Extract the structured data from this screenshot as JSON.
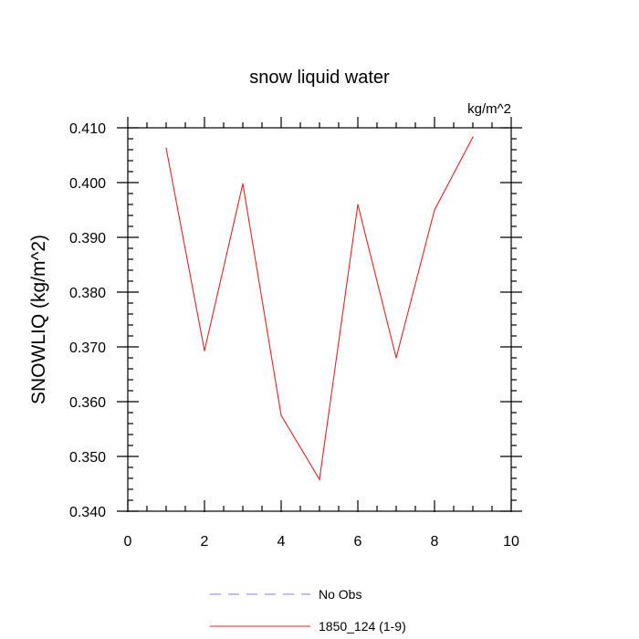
{
  "chart_data": {
    "type": "line",
    "title": "snow liquid water",
    "units": "kg/m^2",
    "xlabel": "",
    "ylabel": "SNOWLIQ  (kg/m^2)",
    "xlim": [
      0,
      10
    ],
    "ylim": [
      0.34,
      0.41
    ],
    "x_ticks": [
      0,
      2,
      4,
      6,
      8,
      10
    ],
    "x_tick_labels": [
      "0",
      "2",
      "4",
      "6",
      "8",
      "10"
    ],
    "y_ticks": [
      0.34,
      0.35,
      0.36,
      0.37,
      0.38,
      0.39,
      0.4,
      0.41
    ],
    "y_tick_labels": [
      "0.340",
      "0.350",
      "0.360",
      "0.370",
      "0.380",
      "0.390",
      "0.400",
      "0.410"
    ],
    "grid": false,
    "legend_position": "bottom-center",
    "series": [
      {
        "name": "No Obs",
        "color": "#8080ff",
        "dash": "dashed",
        "x": [],
        "y": []
      },
      {
        "name": "1850_124 (1-9)",
        "color": "#e8202a",
        "dash": "solid",
        "x": [
          1,
          2,
          3,
          4,
          5,
          6,
          7,
          8,
          9
        ],
        "y": [
          0.4063,
          0.3693,
          0.3998,
          0.3575,
          0.3458,
          0.396,
          0.368,
          0.395,
          0.4083
        ]
      }
    ]
  }
}
